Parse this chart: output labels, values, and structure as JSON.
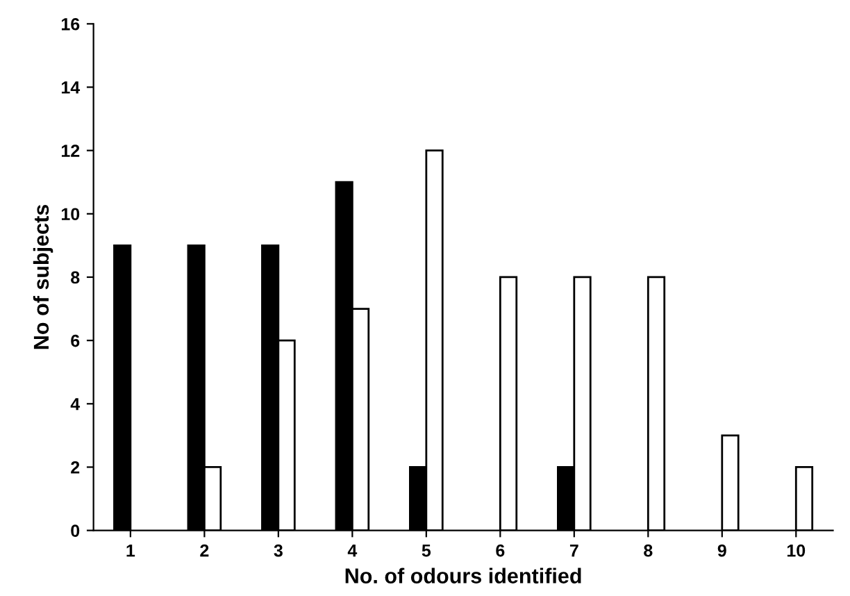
{
  "chart_data": {
    "type": "bar",
    "xlabel": "No. of odours identified",
    "ylabel": "No of subjects",
    "categories": [
      "1",
      "2",
      "3",
      "4",
      "5",
      "6",
      "7",
      "8",
      "9",
      "10"
    ],
    "series": [
      {
        "color": "#000000",
        "values": [
          9,
          9,
          9,
          11,
          2,
          null,
          2,
          null,
          null,
          null
        ]
      },
      {
        "color": "#ffffff",
        "values": [
          null,
          2,
          6,
          7,
          12,
          8,
          8,
          8,
          3,
          2
        ]
      }
    ],
    "ylim": [
      0,
      16
    ],
    "yticks": [
      0,
      2,
      4,
      6,
      8,
      10,
      12,
      14,
      16
    ],
    "grid": false
  }
}
